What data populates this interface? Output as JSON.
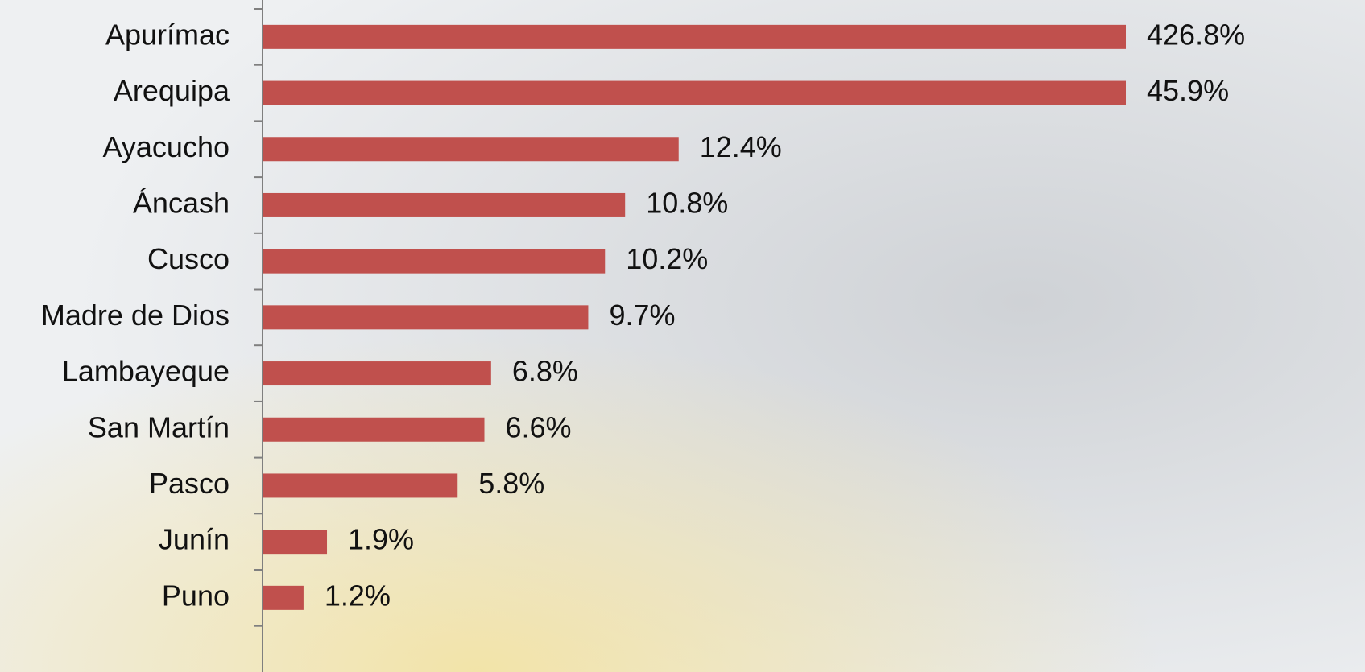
{
  "chart_data": {
    "type": "barh",
    "categories": [
      "Apurímac",
      "Arequipa",
      "Ayacucho",
      "Áncash",
      "Cusco",
      "Madre de Dios",
      "Lambayeque",
      "San Martín",
      "Pasco",
      "Junín",
      "Puno"
    ],
    "values": [
      426.8,
      45.9,
      12.4,
      10.8,
      10.2,
      9.7,
      6.8,
      6.6,
      5.8,
      1.9,
      1.2
    ],
    "value_labels": [
      "426.8%",
      "45.9%",
      "12.4%",
      "10.8%",
      "10.2%",
      "9.7%",
      "6.8%",
      "6.6%",
      "5.8%",
      "1.9%",
      "1.2%"
    ],
    "color": "#c0504d",
    "xlim": [
      0,
      25.75
    ]
  }
}
